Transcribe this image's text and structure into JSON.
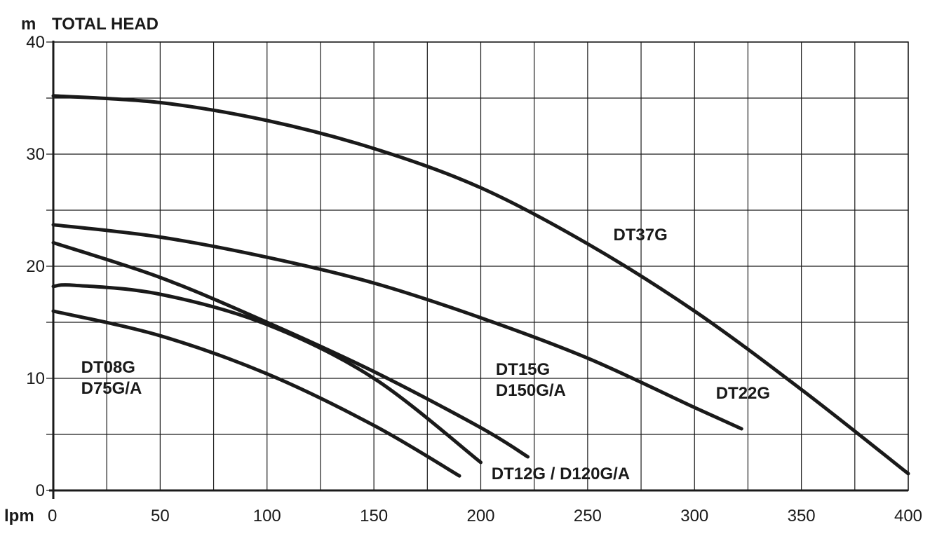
{
  "chart_data": {
    "type": "line",
    "y_unit": "m",
    "title": "TOTAL HEAD",
    "x_unit": "lpm",
    "xlim": [
      0,
      400
    ],
    "ylim": [
      0,
      40
    ],
    "x_ticks": [
      0,
      50,
      100,
      150,
      200,
      250,
      300,
      350,
      400
    ],
    "y_ticks": [
      0,
      10,
      20,
      30,
      40
    ],
    "x_gridlines": [
      0,
      25,
      50,
      75,
      100,
      125,
      150,
      175,
      200,
      225,
      250,
      275,
      300,
      325,
      350,
      375,
      400
    ],
    "y_gridlines": [
      0,
      5,
      10,
      15,
      20,
      25,
      30,
      35,
      40
    ],
    "grid": true,
    "legend": "none (labels placed beside curves)",
    "series": [
      {
        "labels": [
          "DT37G"
        ],
        "x": [
          0,
          50,
          100,
          150,
          200,
          250,
          300,
          350,
          400
        ],
        "y": [
          35.2,
          34.6,
          33.0,
          30.5,
          27.0,
          22.0,
          16.0,
          9.0,
          1.5
        ]
      },
      {
        "labels": [
          "DT22G"
        ],
        "x": [
          0,
          50,
          100,
          150,
          200,
          250,
          300,
          322
        ],
        "y": [
          23.7,
          22.6,
          20.8,
          18.5,
          15.4,
          11.8,
          7.4,
          5.5
        ]
      },
      {
        "labels": [
          "DT15G",
          "D150G/A"
        ],
        "x": [
          0,
          50,
          100,
          150,
          200,
          222
        ],
        "y": [
          22.1,
          19.0,
          15.0,
          10.6,
          5.6,
          3.0
        ]
      },
      {
        "labels": [
          "DT12G / D120G/A"
        ],
        "x": [
          0,
          10,
          50,
          100,
          150,
          200
        ],
        "y": [
          18.2,
          18.3,
          17.5,
          14.8,
          10.0,
          2.5
        ]
      },
      {
        "labels": [
          "DT08G",
          "D75G/A"
        ],
        "x": [
          0,
          50,
          100,
          150,
          190
        ],
        "y": [
          16.0,
          13.8,
          10.4,
          5.8,
          1.3
        ]
      }
    ],
    "annotations": [
      {
        "lines": [
          "DT37G"
        ],
        "x": 262,
        "y": 22.3
      },
      {
        "lines": [
          "DT22G"
        ],
        "x": 310,
        "y": 8.2
      },
      {
        "lines": [
          "DT15G",
          "D150G/A"
        ],
        "x": 207,
        "y": 10.3
      },
      {
        "lines": [
          "DT12G / D120G/A"
        ],
        "x": 205,
        "y": 1.0
      },
      {
        "lines": [
          "DT08G",
          "D75G/A"
        ],
        "x": 13,
        "y": 10.5
      }
    ]
  }
}
